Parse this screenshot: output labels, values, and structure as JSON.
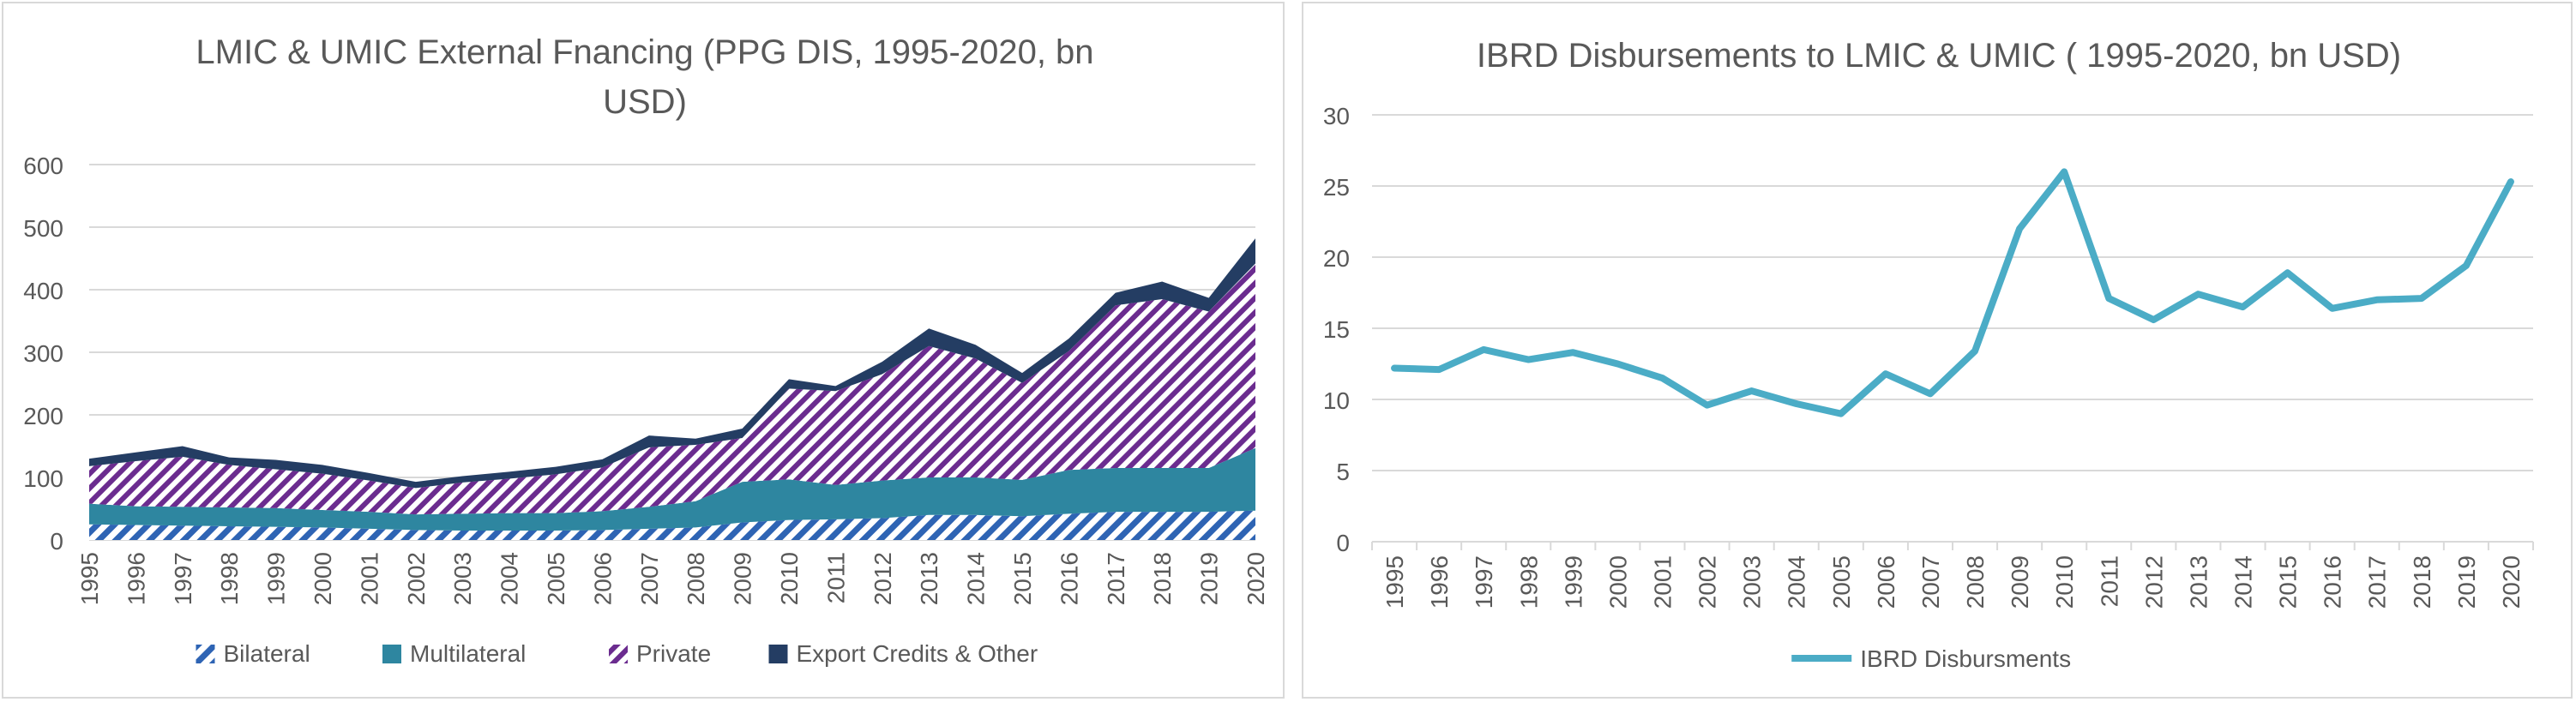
{
  "chart_data": [
    {
      "type": "area",
      "stacked": true,
      "title": "LMIC & UMIC External Fnancing (PPG DIS, 1995-2020, bn USD)",
      "title_lines": [
        "LMIC & UMIC External Fnancing (PPG DIS, 1995-2020, bn",
        "USD)"
      ],
      "x": [
        "1995",
        "1996",
        "1997",
        "1998",
        "1999",
        "2000",
        "2001",
        "2002",
        "2003",
        "2004",
        "2005",
        "2006",
        "2007",
        "2008",
        "2009",
        "2010",
        "2011",
        "2012",
        "2013",
        "2014",
        "2015",
        "2016",
        "2017",
        "2018",
        "2019",
        "2020"
      ],
      "ylim": [
        0,
        600
      ],
      "yticks": [
        0,
        100,
        200,
        300,
        400,
        500,
        600
      ],
      "grid": true,
      "legend_position": "bottom",
      "series": [
        {
          "name": "Bilateral",
          "color": "#2e64b4",
          "pattern": "stripes",
          "values": [
            25,
            24,
            23,
            22,
            21,
            20,
            18,
            16,
            15,
            15,
            15,
            16,
            18,
            20,
            28,
            32,
            33,
            35,
            40,
            40,
            38,
            42,
            45,
            45,
            45,
            47
          ]
        },
        {
          "name": "Multilateral",
          "color": "#2e86a0",
          "pattern": "solid",
          "values": [
            33,
            30,
            30,
            30,
            30,
            28,
            27,
            25,
            27,
            28,
            28,
            30,
            35,
            42,
            65,
            65,
            55,
            60,
            60,
            60,
            58,
            70,
            70,
            70,
            70,
            100
          ]
        },
        {
          "name": "Private",
          "color": "#6b2c8f",
          "pattern": "zigzag",
          "values": [
            60,
            72,
            80,
            68,
            62,
            58,
            50,
            42,
            50,
            55,
            62,
            70,
            95,
            90,
            70,
            145,
            150,
            170,
            210,
            190,
            155,
            190,
            260,
            270,
            250,
            295
          ]
        },
        {
          "name": "Export Credits & Other",
          "color": "#243d63",
          "pattern": "solid",
          "values": [
            12,
            14,
            17,
            12,
            15,
            14,
            12,
            10,
            10,
            11,
            12,
            13,
            19,
            10,
            15,
            15,
            8,
            20,
            28,
            22,
            16,
            20,
            20,
            28,
            22,
            40
          ]
        }
      ]
    },
    {
      "type": "line",
      "title": "IBRD Disbursements to LMIC & UMIC ( 1995-2020, bn USD)",
      "x": [
        "1995",
        "1996",
        "1997",
        "1998",
        "1999",
        "2000",
        "2001",
        "2002",
        "2003",
        "2004",
        "2005",
        "2006",
        "2007",
        "2008",
        "2009",
        "2010",
        "2011",
        "2012",
        "2013",
        "2014",
        "2015",
        "2016",
        "2017",
        "2018",
        "2019",
        "2020"
      ],
      "ylim": [
        0,
        30
      ],
      "yticks": [
        0,
        5,
        10,
        15,
        20,
        25,
        30
      ],
      "grid": true,
      "legend_position": "bottom",
      "series": [
        {
          "name": "IBRD Disbursments",
          "color": "#4bacc6",
          "values": [
            12.2,
            12.1,
            13.5,
            12.8,
            13.3,
            12.5,
            11.5,
            9.6,
            10.6,
            9.7,
            9.0,
            11.8,
            10.4,
            13.4,
            22.0,
            26.0,
            17.1,
            15.6,
            17.4,
            16.5,
            18.9,
            16.4,
            17.0,
            17.1,
            19.4,
            25.3
          ]
        }
      ]
    }
  ]
}
